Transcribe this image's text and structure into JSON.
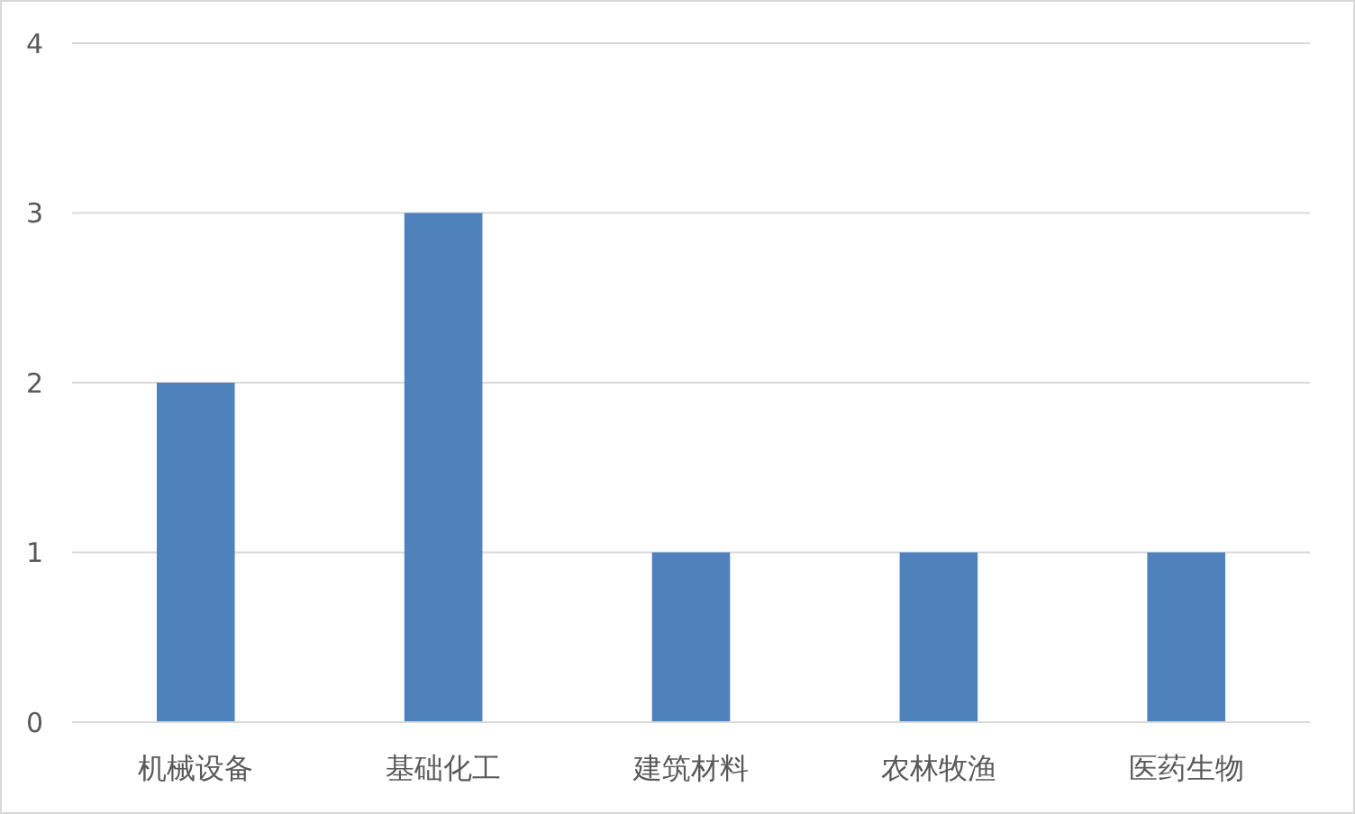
{
  "chart_data": {
    "type": "bar",
    "categories": [
      "机械设备",
      "基础化工",
      "建筑材料",
      "农林牧渔",
      "医药生物"
    ],
    "values": [
      2,
      3,
      1,
      1,
      1
    ],
    "color": "#4f81bd",
    "ylim": [
      0,
      4
    ],
    "yticks": [
      0,
      1,
      2,
      3,
      4
    ],
    "grid": "y"
  }
}
